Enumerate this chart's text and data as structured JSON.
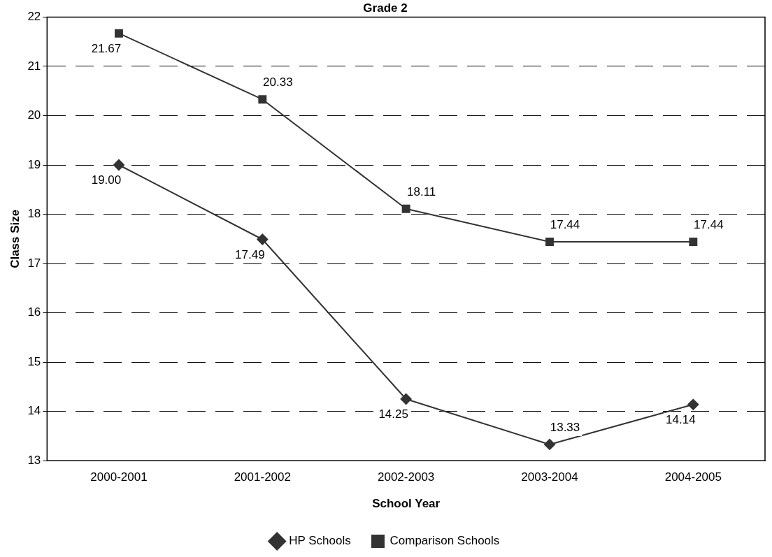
{
  "chart_data": {
    "type": "line",
    "title": "Grade 2",
    "xlabel": "School Year",
    "ylabel": "Class Size",
    "categories": [
      "2000-2001",
      "2001-2002",
      "2002-2003",
      "2003-2004",
      "2004-2005"
    ],
    "series": [
      {
        "name": "HP Schools",
        "color": "#333333",
        "marker": "diamond",
        "values": [
          19.0,
          17.49,
          14.25,
          13.33,
          14.14
        ],
        "value_labels": [
          "19.00",
          "17.49",
          "14.25",
          "13.33",
          "14.14"
        ]
      },
      {
        "name": "Comparison Schools",
        "color": "#333333",
        "marker": "square",
        "values": [
          21.67,
          20.33,
          18.11,
          17.44,
          17.44
        ],
        "value_labels": [
          "21.67",
          "20.33",
          "18.11",
          "17.44",
          "17.44"
        ]
      }
    ],
    "ylim": [
      13,
      22
    ],
    "yticks": [
      13,
      14,
      15,
      16,
      17,
      18,
      19,
      20,
      21,
      22
    ],
    "grid": "y",
    "legend": "bottom",
    "line_style": "solid"
  }
}
